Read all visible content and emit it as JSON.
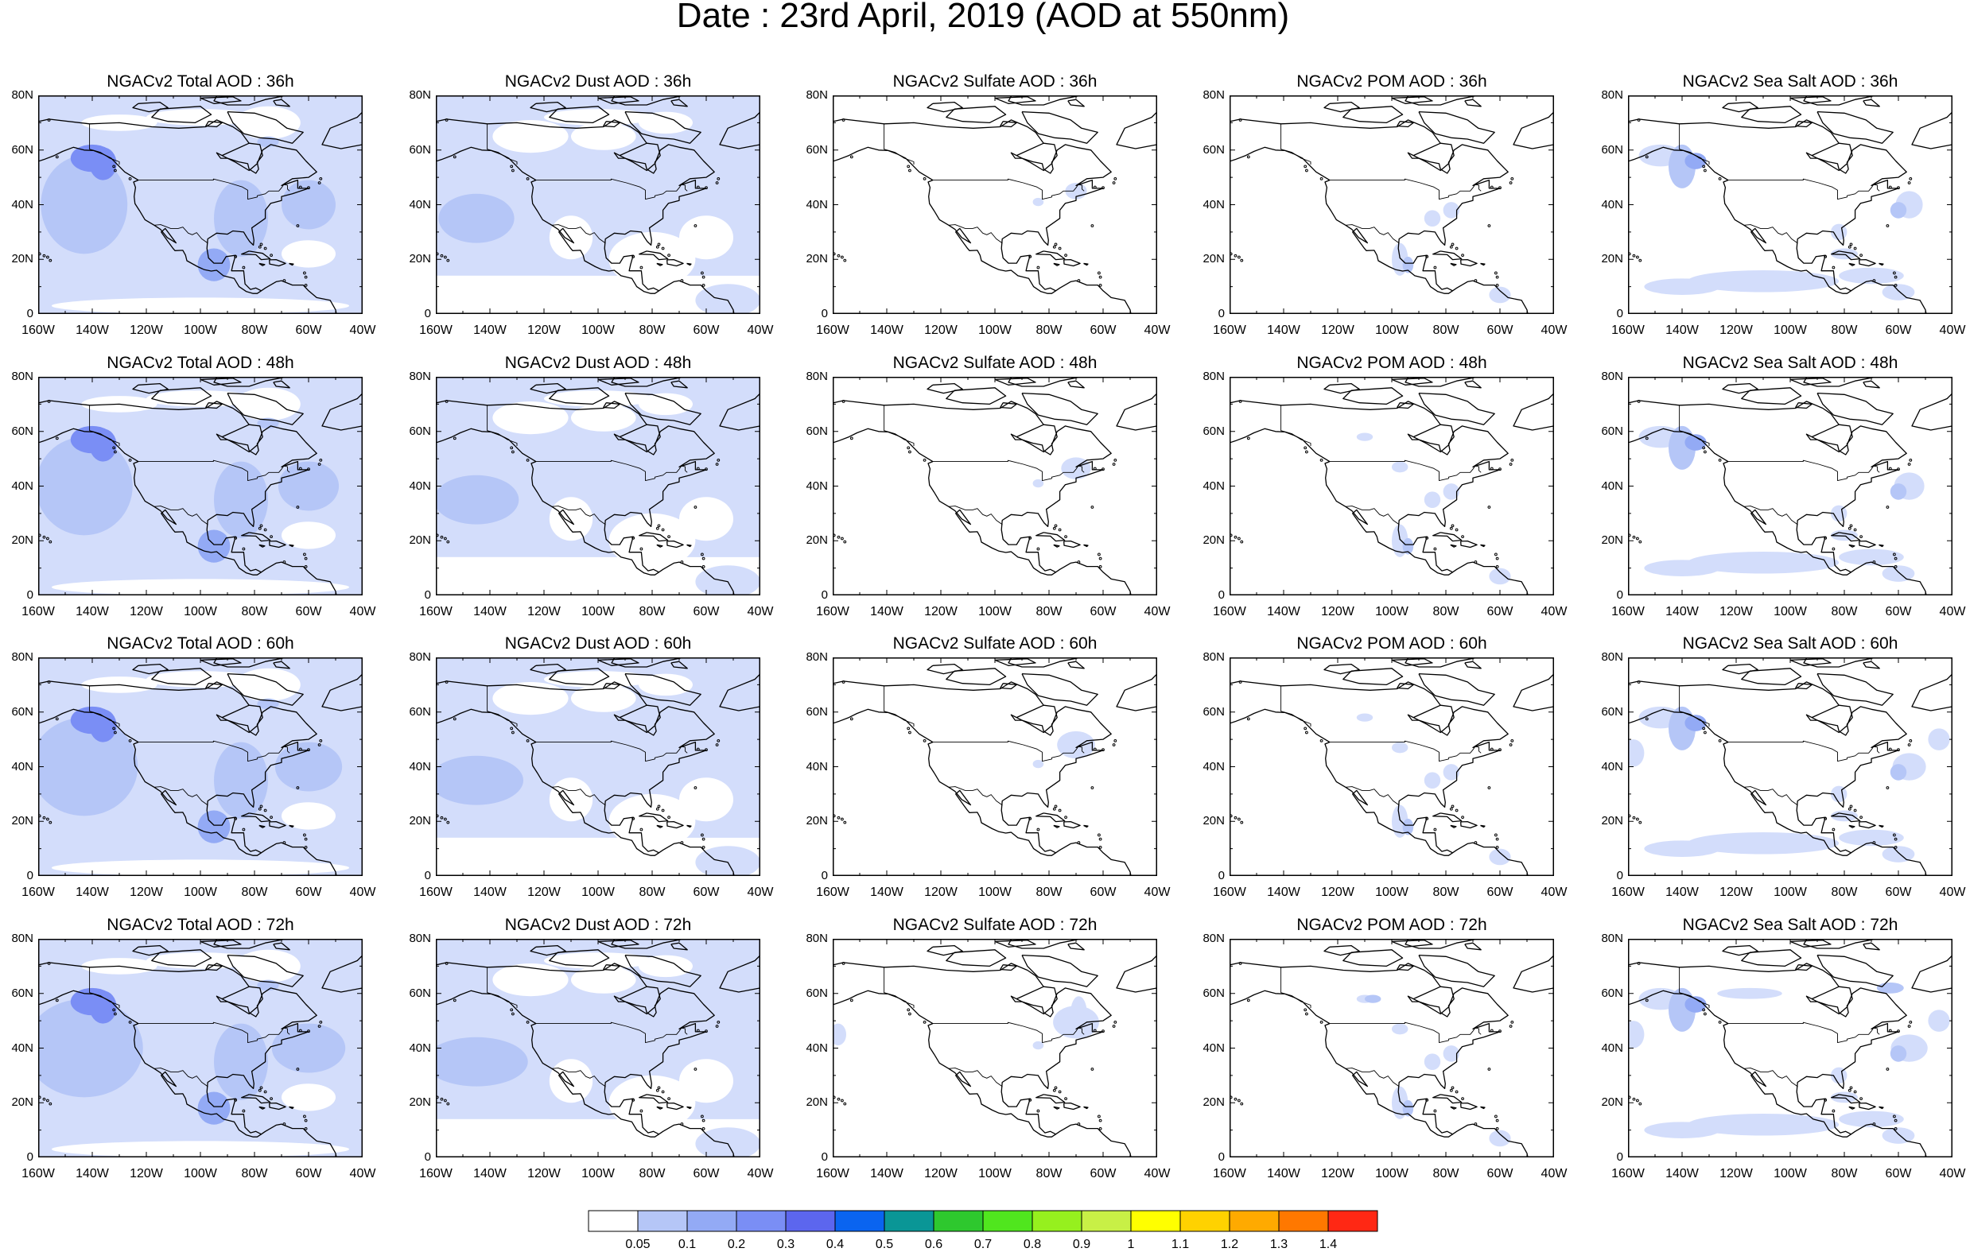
{
  "title": "Date : 23rd April, 2019 (AOD at 550nm)",
  "lat_labels": [
    "80N",
    "60N",
    "40N",
    "20N",
    "0"
  ],
  "lon_labels": [
    "160W",
    "140W",
    "120W",
    "100W",
    "80W",
    "60W",
    "40W"
  ],
  "panels": [
    [
      {
        "title": "NGACv2 Total AOD : 36h",
        "field": "total"
      },
      {
        "title": "NGACv2 Dust AOD : 36h",
        "field": "dust"
      },
      {
        "title": "NGACv2 Sulfate AOD : 36h",
        "field": "sulfate"
      },
      {
        "title": "NGACv2 POM AOD : 36h",
        "field": "pom"
      },
      {
        "title": "NGACv2 Sea Salt AOD : 36h",
        "field": "seasalt"
      }
    ],
    [
      {
        "title": "NGACv2 Total AOD : 48h",
        "field": "total"
      },
      {
        "title": "NGACv2 Dust AOD : 48h",
        "field": "dust"
      },
      {
        "title": "NGACv2 Sulfate AOD : 48h",
        "field": "sulfate"
      },
      {
        "title": "NGACv2 POM AOD : 48h",
        "field": "pom"
      },
      {
        "title": "NGACv2 Sea Salt AOD : 48h",
        "field": "seasalt"
      }
    ],
    [
      {
        "title": "NGACv2 Total AOD : 60h",
        "field": "total"
      },
      {
        "title": "NGACv2 Dust AOD : 60h",
        "field": "dust"
      },
      {
        "title": "NGACv2 Sulfate AOD : 60h",
        "field": "sulfate"
      },
      {
        "title": "NGACv2 POM AOD : 60h",
        "field": "pom"
      },
      {
        "title": "NGACv2 Sea Salt AOD : 60h",
        "field": "seasalt"
      }
    ],
    [
      {
        "title": "NGACv2 Total AOD : 72h",
        "field": "total"
      },
      {
        "title": "NGACv2 Dust AOD : 72h",
        "field": "dust"
      },
      {
        "title": "NGACv2 Sulfate AOD : 72h",
        "field": "sulfate"
      },
      {
        "title": "NGACv2 POM AOD : 72h",
        "field": "pom"
      },
      {
        "title": "NGACv2 Sea Salt  AOD : 72h",
        "field": "seasalt"
      }
    ]
  ],
  "colorbar": {
    "labels": [
      "0.05",
      "0.1",
      "0.2",
      "0.3",
      "0.4",
      "0.5",
      "0.6",
      "0.7",
      "0.8",
      "0.9",
      "1",
      "1.1",
      "1.2",
      "1.3",
      "1.4"
    ],
    "colors": [
      "#ffffff",
      "#d3ddfb",
      "#b5c6f7",
      "#93aaf5",
      "#7a8ef5",
      "#5c66ee",
      "#0a64f0",
      "#0a9696",
      "#2ec82e",
      "#50e61e",
      "#96f01e",
      "#c8f046",
      "#ffff00",
      "#ffd200",
      "#ffaa00",
      "#ff7800",
      "#ff2814"
    ]
  },
  "chart_data": {
    "type": "heatmap",
    "title": "Date : 23rd April, 2019 (AOD at 550nm)",
    "xlim": [
      "160W",
      "40W"
    ],
    "ylim": [
      "0",
      "80N"
    ],
    "rows_forecast_hours": [
      "36h",
      "48h",
      "60h",
      "72h"
    ],
    "columns_species": [
      "Total AOD",
      "Dust AOD",
      "Sulfate AOD",
      "POM AOD",
      "Sea Salt AOD"
    ],
    "legend": "bottom",
    "color_levels": [
      0.05,
      0.1,
      0.2,
      0.3,
      0.4,
      0.5,
      0.6,
      0.7,
      0.8,
      0.9,
      1,
      1.1,
      1.2,
      1.3,
      1.4
    ]
  }
}
